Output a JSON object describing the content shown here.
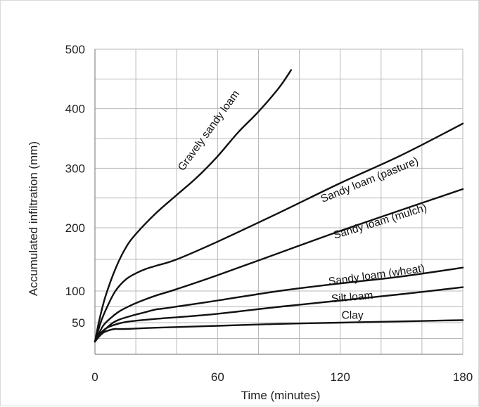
{
  "chart_data": {
    "type": "line",
    "title": "",
    "xlabel": "Time (minutes)",
    "ylabel": "Accumulated infiltration (mm)",
    "xlim": [
      0,
      180
    ],
    "ylim": [
      0,
      500
    ],
    "xticks": [
      0,
      60,
      120,
      180
    ],
    "yticks": [
      50,
      100,
      200,
      300,
      400,
      500
    ],
    "grid": true,
    "series": [
      {
        "name": "Gravely sandy loam",
        "x": [
          0,
          2,
          5,
          10,
          15,
          20,
          30,
          40,
          50,
          60,
          70,
          80,
          90,
          96
        ],
        "y": [
          20,
          52,
          90,
          135,
          168,
          190,
          225,
          255,
          285,
          320,
          360,
          395,
          435,
          465
        ]
      },
      {
        "name": "Sandy loam (pasture)",
        "x": [
          0,
          3,
          6,
          10,
          15,
          20,
          25,
          30,
          40,
          60,
          90,
          120,
          150,
          180
        ],
        "y": [
          20,
          52,
          75,
          100,
          118,
          128,
          135,
          140,
          150,
          178,
          225,
          275,
          322,
          375
        ]
      },
      {
        "name": "Sandy loam (mulch)",
        "x": [
          0,
          4,
          8,
          12,
          18,
          24,
          30,
          40,
          60,
          90,
          120,
          150,
          180
        ],
        "y": [
          20,
          45,
          58,
          68,
          78,
          86,
          93,
          103,
          125,
          160,
          195,
          230,
          265
        ]
      },
      {
        "name": "Sandy loam (wheat)",
        "x": [
          0,
          4,
          8,
          12,
          18,
          24,
          30,
          35,
          60,
          90,
          120,
          150,
          180
        ],
        "y": [
          20,
          36,
          48,
          55,
          61,
          66,
          71,
          73,
          85,
          100,
          112,
          123,
          137
        ]
      },
      {
        "name": "Silt loam",
        "x": [
          0,
          3,
          6,
          10,
          15,
          20,
          30,
          60,
          90,
          120,
          150,
          180
        ],
        "y": [
          20,
          34,
          42,
          47,
          51,
          53,
          56,
          64,
          75,
          85,
          95,
          106
        ]
      },
      {
        "name": "Clay",
        "x": [
          0,
          2,
          4,
          6,
          8,
          10,
          15,
          30,
          60,
          90,
          120,
          150,
          180
        ],
        "y": [
          20,
          28,
          34,
          37,
          39,
          40,
          40,
          42,
          45,
          48,
          50,
          52,
          54
        ]
      }
    ],
    "labels": [
      {
        "text": "Gravely sandy loam",
        "x": 57,
        "y": 360,
        "angle": -54
      },
      {
        "text": "Sandy loam (pasture)",
        "x": 135,
        "y": 275,
        "angle": -22
      },
      {
        "text": "Sandy loam (mulch)",
        "x": 140,
        "y": 205,
        "angle": -17
      },
      {
        "text": "Sandy loam (wheat)",
        "x": 138,
        "y": 120,
        "angle": -8
      },
      {
        "text": "Silt loam",
        "x": 126,
        "y": 85,
        "angle": -5
      },
      {
        "text": "Clay",
        "x": 126,
        "y": 56,
        "angle": 0
      }
    ],
    "colors": {
      "line": "#111111",
      "grid": "#b8b8b8",
      "axis": "#8a8a8a"
    }
  }
}
